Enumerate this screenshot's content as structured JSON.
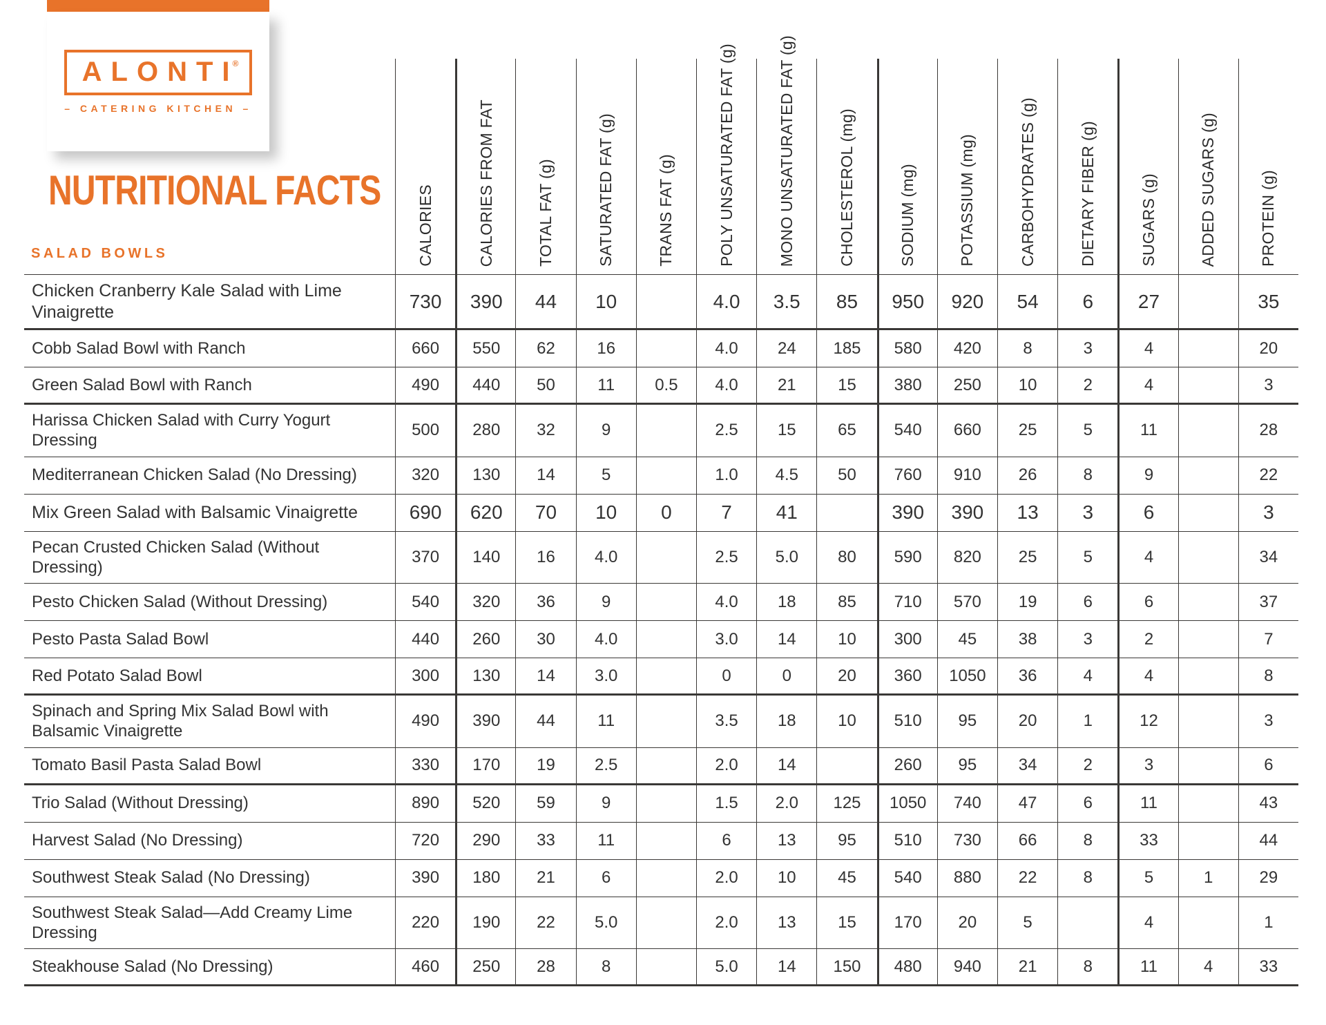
{
  "colors": {
    "accent": "#e8732a",
    "line": "#3a3836",
    "text": "#333333"
  },
  "brand": {
    "name": "ALONTI",
    "registered": "®",
    "tagline": "– CATERING KITCHEN –"
  },
  "header": {
    "title": "NUTRITIONAL FACTS",
    "section": "SALAD BOWLS"
  },
  "table": {
    "columns": [
      "CALORIES",
      "CALORIES FROM FAT",
      "TOTAL FAT (g)",
      "SATURATED FAT (g)",
      "TRANS FAT (g)",
      "POLY UNSATURATED FAT (g)",
      "MONO UNSATURATED FAT (g)",
      "CHOLESTEROL (mg)",
      "SODIUM (mg)",
      "POTASSIUM (mg)",
      "CARBOHYDRATES (g)",
      "DIETARY FIBER (g)",
      "SUGARS (g)",
      "ADDED SUGARS (g)",
      "PROTEIN (g)"
    ],
    "thick_divider_before_columns": [
      1,
      8,
      12
    ],
    "rows": [
      {
        "name": "Chicken Cranberry Kale Salad with Lime Vinaigrette",
        "values": [
          "730",
          "390",
          "44",
          "10",
          "",
          "4.0",
          "3.5",
          "85",
          "950",
          "920",
          "54",
          "6",
          "27",
          "",
          "35"
        ],
        "thick_bottom": true,
        "large": true
      },
      {
        "name": "Cobb Salad Bowl with Ranch",
        "values": [
          "660",
          "550",
          "62",
          "16",
          "",
          "4.0",
          "24",
          "185",
          "580",
          "420",
          "8",
          "3",
          "4",
          "",
          "20"
        ],
        "thick_bottom": false,
        "large": false
      },
      {
        "name": "Green Salad Bowl with Ranch",
        "values": [
          "490",
          "440",
          "50",
          "11",
          "0.5",
          "4.0",
          "21",
          "15",
          "380",
          "250",
          "10",
          "2",
          "4",
          "",
          "3"
        ],
        "thick_bottom": true,
        "large": false
      },
      {
        "name": "Harissa Chicken Salad with Curry Yogurt Dressing",
        "values": [
          "500",
          "280",
          "32",
          "9",
          "",
          "2.5",
          "15",
          "65",
          "540",
          "660",
          "25",
          "5",
          "11",
          "",
          "28"
        ],
        "thick_bottom": false,
        "large": false
      },
      {
        "name": "Mediterranean Chicken Salad (No Dressing)",
        "values": [
          "320",
          "130",
          "14",
          "5",
          "",
          "1.0",
          "4.5",
          "50",
          "760",
          "910",
          "26",
          "8",
          "9",
          "",
          "22"
        ],
        "thick_bottom": false,
        "large": false
      },
      {
        "name": "Mix Green Salad with Balsamic Vinaigrette",
        "values": [
          "690",
          "620",
          "70",
          "10",
          "0",
          "7",
          "41",
          "",
          "390",
          "390",
          "13",
          "3",
          "6",
          "",
          "3"
        ],
        "thick_bottom": false,
        "large": true
      },
      {
        "name": "Pecan Crusted Chicken Salad (Without Dressing)",
        "values": [
          "370",
          "140",
          "16",
          "4.0",
          "",
          "2.5",
          "5.0",
          "80",
          "590",
          "820",
          "25",
          "5",
          "4",
          "",
          "34"
        ],
        "thick_bottom": false,
        "large": false
      },
      {
        "name": "Pesto Chicken Salad (Without Dressing)",
        "values": [
          "540",
          "320",
          "36",
          "9",
          "",
          "4.0",
          "18",
          "85",
          "710",
          "570",
          "19",
          "6",
          "6",
          "",
          "37"
        ],
        "thick_bottom": false,
        "large": false
      },
      {
        "name": "Pesto Pasta Salad Bowl",
        "values": [
          "440",
          "260",
          "30",
          "4.0",
          "",
          "3.0",
          "14",
          "10",
          "300",
          "45",
          "38",
          "3",
          "2",
          "",
          "7"
        ],
        "thick_bottom": false,
        "large": false
      },
      {
        "name": "Red Potato Salad Bowl",
        "values": [
          "300",
          "130",
          "14",
          "3.0",
          "",
          "0",
          "0",
          "20",
          "360",
          "1050",
          "36",
          "4",
          "4",
          "",
          "8"
        ],
        "thick_bottom": true,
        "large": false
      },
      {
        "name": "Spinach and Spring Mix Salad Bowl with\nBalsamic Vinaigrette",
        "values": [
          "490",
          "390",
          "44",
          "11",
          "",
          "3.5",
          "18",
          "10",
          "510",
          "95",
          "20",
          "1",
          "12",
          "",
          "3"
        ],
        "thick_bottom": false,
        "large": false
      },
      {
        "name": "Tomato Basil Pasta Salad Bowl",
        "values": [
          "330",
          "170",
          "19",
          "2.5",
          "",
          "2.0",
          "14",
          "",
          "260",
          "95",
          "34",
          "2",
          "3",
          "",
          "6"
        ],
        "thick_bottom": true,
        "large": false
      },
      {
        "name": "Trio Salad (Without Dressing)",
        "values": [
          "890",
          "520",
          "59",
          "9",
          "",
          "1.5",
          "2.0",
          "125",
          "1050",
          "740",
          "47",
          "6",
          "11",
          "",
          "43"
        ],
        "thick_bottom": false,
        "large": false
      },
      {
        "name": "Harvest Salad (No Dressing)",
        "values": [
          "720",
          "290",
          "33",
          "11",
          "",
          "6",
          "13",
          "95",
          "510",
          "730",
          "66",
          "8",
          "33",
          "",
          "44"
        ],
        "thick_bottom": false,
        "large": false
      },
      {
        "name": "Southwest Steak Salad (No Dressing)",
        "values": [
          "390",
          "180",
          "21",
          "6",
          "",
          "2.0",
          "10",
          "45",
          "540",
          "880",
          "22",
          "8",
          "5",
          "1",
          "29"
        ],
        "thick_bottom": false,
        "large": false
      },
      {
        "name": "Southwest Steak Salad—Add Creamy Lime\nDressing",
        "values": [
          "220",
          "190",
          "22",
          "5.0",
          "",
          "2.0",
          "13",
          "15",
          "170",
          "20",
          "5",
          "",
          "4",
          "",
          "1"
        ],
        "thick_bottom": false,
        "large": false
      },
      {
        "name": "Steakhouse Salad (No Dressing)",
        "values": [
          "460",
          "250",
          "28",
          "8",
          "",
          "5.0",
          "14",
          "150",
          "480",
          "940",
          "21",
          "8",
          "11",
          "4",
          "33"
        ],
        "thick_bottom": true,
        "large": false
      }
    ]
  }
}
